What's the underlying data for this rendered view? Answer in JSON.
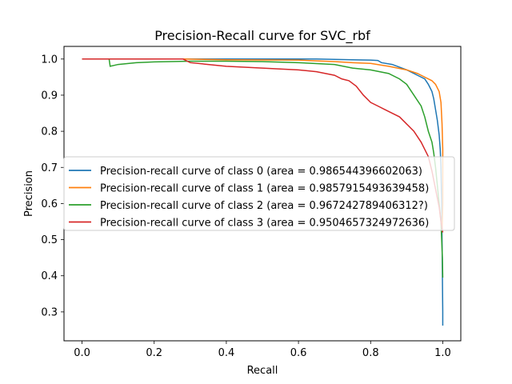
{
  "chart_data": {
    "type": "line",
    "title": "Precision-Recall curve for SVC_rbf",
    "xlabel": "Recall",
    "ylabel": "Precision",
    "xlim": [
      -0.05,
      1.05
    ],
    "ylim": [
      0.22,
      1.035
    ],
    "xticks": [
      0.0,
      0.2,
      0.4,
      0.6,
      0.8,
      1.0
    ],
    "xtick_labels": [
      "0.0",
      "0.2",
      "0.4",
      "0.6",
      "0.8",
      "1.0"
    ],
    "yticks": [
      0.3,
      0.4,
      0.5,
      0.6,
      0.7,
      0.8,
      0.9,
      1.0
    ],
    "ytick_labels": [
      "0.3",
      "0.4",
      "0.5",
      "0.6",
      "0.7",
      "0.8",
      "0.9",
      "1.0"
    ],
    "grid": false,
    "legend_position": "center-left",
    "series": [
      {
        "name": "Precision-recall curve of class 0 (area = 0.986544396602063)",
        "color": "#1f77b4",
        "points": [
          [
            0.0,
            1.0
          ],
          [
            0.3,
            1.0
          ],
          [
            0.5,
            1.0
          ],
          [
            0.65,
            1.0
          ],
          [
            0.75,
            0.998
          ],
          [
            0.8,
            0.997
          ],
          [
            0.82,
            0.996
          ],
          [
            0.83,
            0.99
          ],
          [
            0.86,
            0.985
          ],
          [
            0.9,
            0.97
          ],
          [
            0.93,
            0.955
          ],
          [
            0.95,
            0.945
          ],
          [
            0.96,
            0.93
          ],
          [
            0.97,
            0.91
          ],
          [
            0.975,
            0.89
          ],
          [
            0.98,
            0.86
          ],
          [
            0.985,
            0.83
          ],
          [
            0.99,
            0.79
          ],
          [
            0.993,
            0.75
          ],
          [
            0.995,
            0.7
          ],
          [
            0.997,
            0.6
          ],
          [
            0.998,
            0.5
          ],
          [
            0.999,
            0.4
          ],
          [
            1.0,
            0.3
          ],
          [
            1.0,
            0.262
          ]
        ]
      },
      {
        "name": "Precision-recall curve of class 1 (area = 0.9857915493639458)",
        "color": "#ff7f0e",
        "points": [
          [
            0.0,
            1.0
          ],
          [
            0.28,
            1.0
          ],
          [
            0.4,
            0.998
          ],
          [
            0.6,
            0.997
          ],
          [
            0.7,
            0.993
          ],
          [
            0.75,
            0.99
          ],
          [
            0.8,
            0.988
          ],
          [
            0.85,
            0.98
          ],
          [
            0.9,
            0.97
          ],
          [
            0.93,
            0.96
          ],
          [
            0.95,
            0.95
          ],
          [
            0.97,
            0.94
          ],
          [
            0.98,
            0.93
          ],
          [
            0.99,
            0.91
          ],
          [
            0.995,
            0.88
          ],
          [
            0.998,
            0.82
          ],
          [
            1.0,
            0.75
          ],
          [
            1.0,
            0.7
          ],
          [
            1.0,
            0.6
          ],
          [
            0.998,
            0.52
          ]
        ]
      },
      {
        "name": "Precision-recall curve of class 2 (area = 0.967242789406312?)",
        "color": "#2ca02c",
        "points": [
          [
            0.0,
            1.0
          ],
          [
            0.075,
            1.0
          ],
          [
            0.078,
            0.98
          ],
          [
            0.1,
            0.985
          ],
          [
            0.15,
            0.99
          ],
          [
            0.2,
            0.992
          ],
          [
            0.3,
            0.994
          ],
          [
            0.4,
            0.994
          ],
          [
            0.5,
            0.993
          ],
          [
            0.6,
            0.99
          ],
          [
            0.7,
            0.985
          ],
          [
            0.75,
            0.975
          ],
          [
            0.8,
            0.97
          ],
          [
            0.85,
            0.96
          ],
          [
            0.88,
            0.945
          ],
          [
            0.9,
            0.93
          ],
          [
            0.92,
            0.9
          ],
          [
            0.94,
            0.87
          ],
          [
            0.95,
            0.84
          ],
          [
            0.96,
            0.8
          ],
          [
            0.97,
            0.77
          ],
          [
            0.975,
            0.74
          ],
          [
            0.98,
            0.7
          ],
          [
            0.985,
            0.65
          ],
          [
            0.99,
            0.6
          ],
          [
            0.995,
            0.55
          ],
          [
            0.997,
            0.5
          ],
          [
            0.999,
            0.45
          ],
          [
            1.0,
            0.395
          ]
        ]
      },
      {
        "name": "Precision-recall curve of class 3 (area = 0.9504657324972636)",
        "color": "#d62728",
        "points": [
          [
            0.0,
            1.0
          ],
          [
            0.28,
            1.0
          ],
          [
            0.3,
            0.99
          ],
          [
            0.35,
            0.985
          ],
          [
            0.4,
            0.98
          ],
          [
            0.5,
            0.975
          ],
          [
            0.6,
            0.97
          ],
          [
            0.65,
            0.965
          ],
          [
            0.7,
            0.955
          ],
          [
            0.72,
            0.945
          ],
          [
            0.74,
            0.94
          ],
          [
            0.76,
            0.925
          ],
          [
            0.78,
            0.9
          ],
          [
            0.8,
            0.88
          ],
          [
            0.82,
            0.87
          ],
          [
            0.84,
            0.86
          ],
          [
            0.86,
            0.85
          ],
          [
            0.88,
            0.84
          ],
          [
            0.9,
            0.82
          ],
          [
            0.92,
            0.8
          ],
          [
            0.94,
            0.77
          ],
          [
            0.96,
            0.73
          ],
          [
            0.97,
            0.69
          ],
          [
            0.98,
            0.64
          ],
          [
            0.99,
            0.59
          ],
          [
            0.995,
            0.55
          ],
          [
            1.0,
            0.52
          ]
        ]
      }
    ]
  }
}
